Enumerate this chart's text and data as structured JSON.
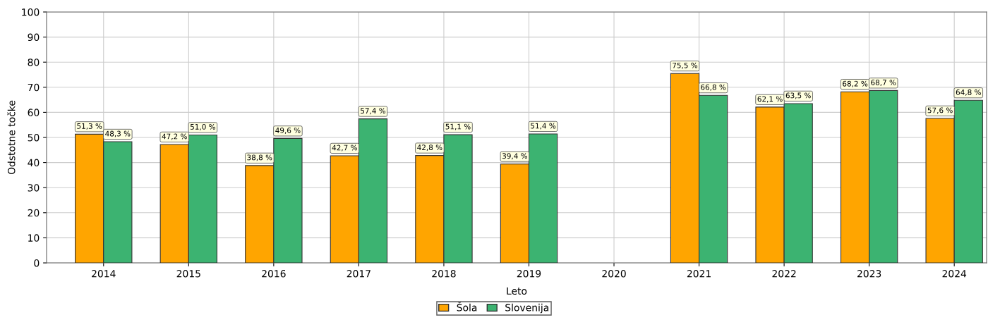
{
  "chart_data": {
    "type": "bar",
    "xlabel": "Leto",
    "ylabel": "Odstotne točke",
    "categories": [
      "2014",
      "2015",
      "2016",
      "2017",
      "2018",
      "2019",
      "2020",
      "2021",
      "2022",
      "2023",
      "2024"
    ],
    "series": [
      {
        "name": "Šola",
        "color": "#ffa500",
        "values": [
          51.3,
          47.2,
          38.8,
          42.7,
          42.8,
          39.4,
          null,
          75.5,
          62.1,
          68.2,
          57.6
        ],
        "value_labels": [
          "51,3 %",
          "47,2 %",
          "38,8 %",
          "42,7 %",
          "42,8 %",
          "39,4 %",
          null,
          "75,5 %",
          "62,1 %",
          "68,2 %",
          "57,6 %"
        ]
      },
      {
        "name": "Slovenija",
        "color": "#3cb371",
        "values": [
          48.3,
          51.0,
          49.6,
          57.4,
          51.1,
          51.4,
          null,
          66.8,
          63.5,
          68.7,
          64.8
        ],
        "value_labels": [
          "48,3 %",
          "51,0 %",
          "49,6 %",
          "57,4 %",
          "51,1 %",
          "51,4 %",
          null,
          "66,8 %",
          "63,5 %",
          "68,7 %",
          "64,8 %"
        ]
      }
    ],
    "ylim": [
      0,
      100
    ],
    "yticks": [
      0,
      10,
      20,
      30,
      40,
      50,
      60,
      70,
      80,
      90,
      100
    ],
    "grid": true,
    "legend": "bottom"
  }
}
